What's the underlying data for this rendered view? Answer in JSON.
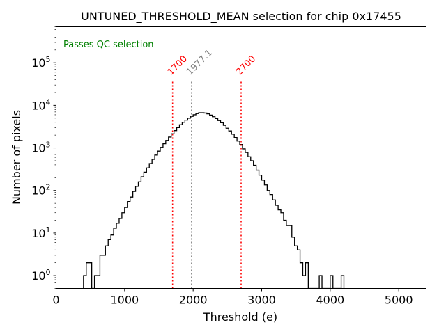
{
  "chart_data": {
    "type": "histogram",
    "title": "UNTUNED_THRESHOLD_MEAN selection for chip 0x17455",
    "xlabel": "Threshold (e)",
    "ylabel": "Number of pixels",
    "xlim": [
      0,
      5400
    ],
    "ylim": [
      0.5,
      700000
    ],
    "yscale": "log",
    "grid": false,
    "x_ticks": [
      0,
      1000,
      2000,
      3000,
      4000,
      5000
    ],
    "x_tick_labels": [
      "0",
      "1000",
      "2000",
      "3000",
      "4000",
      "5000"
    ],
    "y_ticks": [
      1,
      10,
      100,
      1000,
      10000,
      100000
    ],
    "y_tick_labels": [
      {
        "base": "10",
        "exp": "0"
      },
      {
        "base": "10",
        "exp": "1"
      },
      {
        "base": "10",
        "exp": "2"
      },
      {
        "base": "10",
        "exp": "3"
      },
      {
        "base": "10",
        "exp": "4"
      },
      {
        "base": "10",
        "exp": "5"
      }
    ],
    "bin_width": 40,
    "bin_start": 400,
    "counts": [
      1,
      2,
      2,
      0,
      1,
      1,
      3,
      3,
      5,
      7,
      9,
      13,
      17,
      22,
      30,
      40,
      55,
      70,
      95,
      125,
      160,
      210,
      270,
      340,
      430,
      540,
      680,
      840,
      1030,
      1250,
      1500,
      1800,
      2150,
      2550,
      3000,
      3500,
      4000,
      4500,
      5000,
      5500,
      6000,
      6400,
      6700,
      6700,
      6600,
      6300,
      5900,
      5400,
      4900,
      4400,
      3900,
      3400,
      2900,
      2500,
      2100,
      1750,
      1450,
      1200,
      950,
      780,
      620,
      500,
      390,
      300,
      230,
      175,
      135,
      100,
      80,
      60,
      45,
      35,
      30,
      20,
      15,
      15,
      8,
      5,
      4,
      2,
      1,
      2,
      0,
      0,
      0,
      0,
      1,
      0,
      0,
      0,
      1,
      0,
      0,
      0,
      1
    ],
    "vlines": [
      {
        "x": 1700,
        "label": "1700",
        "color": "#ff0000"
      },
      {
        "x": 1977.1,
        "label": "1977.1",
        "color": "#808080"
      },
      {
        "x": 2700,
        "label": "2700",
        "color": "#ff0000"
      }
    ],
    "annotation": {
      "text": "Passes QC selection",
      "color": "#008000",
      "position": "top-left"
    },
    "histogram_color": "#000000"
  }
}
